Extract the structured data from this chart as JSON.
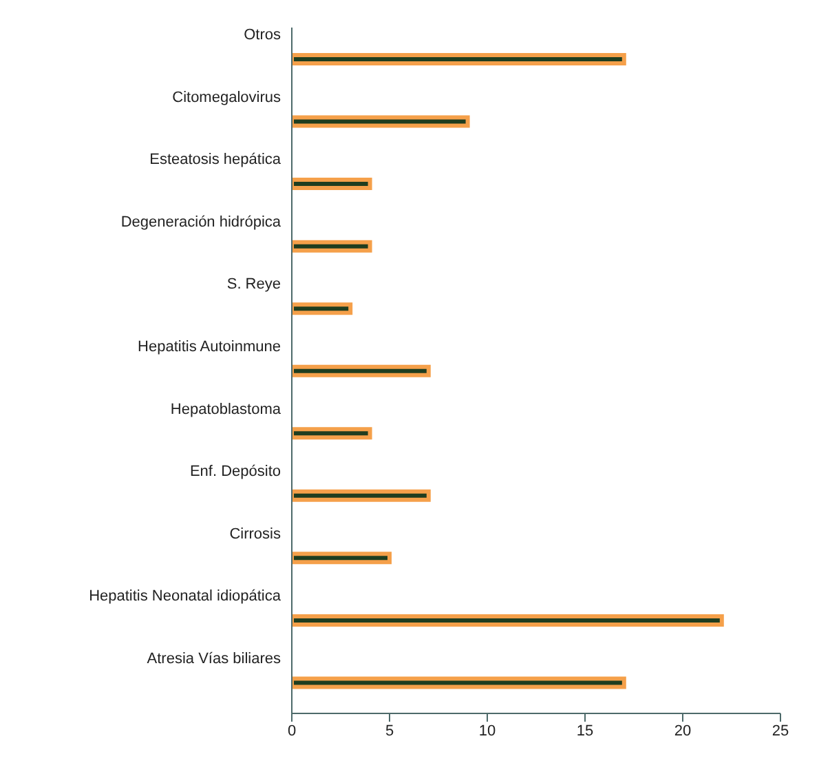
{
  "chart_data": {
    "type": "bar",
    "orientation": "horizontal",
    "categories": [
      "Otros",
      "Citomegalovirus",
      "Esteatosis hepática",
      "Degeneración hidrópica",
      "S. Reye",
      "Hepatitis Autoinmune",
      "Hepatoblastoma",
      "Enf. Depósito",
      "Cirrosis",
      "Hepatitis Neonatal idiopática",
      "Atresia Vías biliares"
    ],
    "values": [
      17,
      9,
      4,
      4,
      3,
      7,
      4,
      7,
      5,
      22,
      17
    ],
    "color": "#1f3d1f",
    "xlim": [
      0,
      25
    ],
    "xticks": [
      0,
      5,
      10,
      15,
      20,
      25
    ],
    "grid": false,
    "legend": false
  }
}
